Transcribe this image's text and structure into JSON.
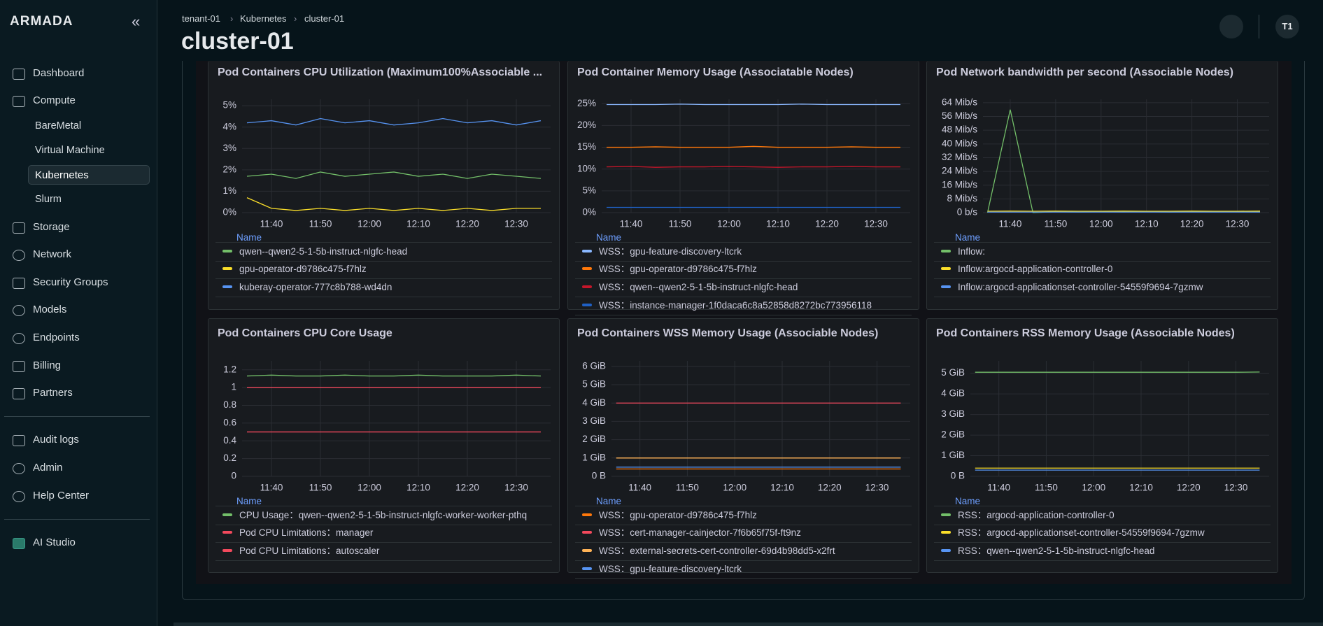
{
  "sidebar": {
    "brand": "ARMADA",
    "nav": [
      "Dashboard",
      "Compute",
      "BareMetal",
      "Virtual Machine",
      "Kubernetes",
      "Slurm",
      "Storage",
      "Network",
      "Security Groups",
      "Models",
      "Endpoints",
      "Billing",
      "Partners",
      "Audit logs",
      "Admin",
      "Help Center",
      "AI Studio"
    ]
  },
  "header": {
    "breadcrumb": [
      "tenant-01",
      "Kubernetes",
      "cluster-01"
    ],
    "title": "cluster-01",
    "avatar": "T1"
  },
  "panels": [
    {
      "title": "Pod Containers CPU Utilization (Maximum100%Associable ...",
      "legend_header": "Name",
      "chart": {
        "type": "line",
        "x": [
          695,
          700,
          705,
          710,
          715,
          720,
          725,
          730,
          735,
          740,
          745,
          750,
          755
        ],
        "xlim": [
          694,
          757
        ],
        "xticks": [
          {
            "value": 700,
            "label": "11:40"
          },
          {
            "value": 710,
            "label": "11:50"
          },
          {
            "value": 720,
            "label": "12:00"
          },
          {
            "value": 730,
            "label": "12:10"
          },
          {
            "value": 740,
            "label": "12:20"
          },
          {
            "value": 750,
            "label": "12:30"
          }
        ],
        "ylim": [
          0,
          5.3
        ],
        "yticks": [
          {
            "value": 0,
            "label": "0%"
          },
          {
            "value": 1,
            "label": "1%"
          },
          {
            "value": 2,
            "label": "2%"
          },
          {
            "value": 3,
            "label": "3%"
          },
          {
            "value": 4,
            "label": "4%"
          },
          {
            "value": 5,
            "label": "5%"
          }
        ],
        "series": [
          {
            "name": "qwen--qwen2-5-1-5b-instruct-nlgfc-head",
            "color": "#73bf69",
            "values": [
              1.7,
              1.8,
              1.6,
              1.9,
              1.7,
              1.8,
              1.9,
              1.7,
              1.8,
              1.6,
              1.8,
              1.7,
              1.6
            ]
          },
          {
            "name": "gpu-operator-d9786c475-f7hlz",
            "color": "#fade2a",
            "values": [
              0.7,
              0.2,
              0.1,
              0.2,
              0.1,
              0.2,
              0.1,
              0.2,
              0.1,
              0.2,
              0.1,
              0.2,
              0.2
            ]
          },
          {
            "name": "kuberay-operator-777c8b788-wd4dn",
            "color": "#5794f2",
            "values": [
              4.2,
              4.3,
              4.1,
              4.4,
              4.2,
              4.3,
              4.1,
              4.2,
              4.4,
              4.2,
              4.3,
              4.1,
              4.3
            ]
          }
        ]
      }
    },
    {
      "title": "Pod Container Memory Usage (Associatable Nodes)",
      "legend_header": "Name",
      "chart": {
        "type": "line",
        "x": [
          695,
          700,
          705,
          710,
          715,
          720,
          725,
          730,
          735,
          740,
          745,
          750,
          755
        ],
        "xlim": [
          694,
          757
        ],
        "xticks": [
          {
            "value": 700,
            "label": "11:40"
          },
          {
            "value": 710,
            "label": "11:50"
          },
          {
            "value": 720,
            "label": "12:00"
          },
          {
            "value": 730,
            "label": "12:10"
          },
          {
            "value": 740,
            "label": "12:20"
          },
          {
            "value": 750,
            "label": "12:30"
          }
        ],
        "ylim": [
          0,
          26
        ],
        "yticks": [
          {
            "value": 0,
            "label": "0%"
          },
          {
            "value": 5,
            "label": "5%"
          },
          {
            "value": 10,
            "label": "10%"
          },
          {
            "value": 15,
            "label": "15%"
          },
          {
            "value": 20,
            "label": "20%"
          },
          {
            "value": 25,
            "label": "25%"
          }
        ],
        "series": [
          {
            "name": "WSS：gpu-feature-discovery-ltcrk",
            "color": "#8ab8ff",
            "values": [
              24.8,
              24.8,
              24.8,
              24.9,
              24.8,
              24.8,
              24.8,
              24.8,
              24.9,
              24.8,
              24.8,
              24.8,
              24.8
            ]
          },
          {
            "name": "WSS：gpu-operator-d9786c475-f7hlz",
            "color": "#ff780a",
            "values": [
              15,
              15,
              15.1,
              15,
              15,
              15,
              15.2,
              15,
              15,
              15,
              15.1,
              15,
              15
            ]
          },
          {
            "name": "WSS：qwen--qwen2-5-1-5b-instruct-nlgfc-head",
            "color": "#c4162a",
            "values": [
              10.5,
              10.6,
              10.4,
              10.5,
              10.5,
              10.6,
              10.5,
              10.4,
              10.5,
              10.5,
              10.6,
              10.5,
              10.5
            ]
          },
          {
            "name": "WSS：instance-manager-1f0daca6c8a52858d8272bc773956118",
            "color": "#1f60c4",
            "values": [
              1.2,
              1.2,
              1.2,
              1.2,
              1.2,
              1.2,
              1.2,
              1.2,
              1.2,
              1.2,
              1.2,
              1.2,
              1.2
            ]
          }
        ]
      }
    },
    {
      "title": "Pod Network bandwidth per second (Associable Nodes)",
      "legend_header": "Name",
      "chart": {
        "type": "line",
        "x": [
          695,
          700,
          705,
          710,
          715,
          720,
          725,
          730,
          735,
          740,
          745,
          750,
          755
        ],
        "xlim": [
          694,
          757
        ],
        "xticks": [
          {
            "value": 700,
            "label": "11:40"
          },
          {
            "value": 710,
            "label": "11:50"
          },
          {
            "value": 720,
            "label": "12:00"
          },
          {
            "value": 730,
            "label": "12:10"
          },
          {
            "value": 740,
            "label": "12:20"
          },
          {
            "value": 750,
            "label": "12:30"
          }
        ],
        "ylim": [
          0,
          66
        ],
        "yticks": [
          {
            "value": 0,
            "label": "0 b/s"
          },
          {
            "value": 8,
            "label": "8 Mib/s"
          },
          {
            "value": 16,
            "label": "16 Mib/s"
          },
          {
            "value": 24,
            "label": "24 Mib/s"
          },
          {
            "value": 32,
            "label": "32 Mib/s"
          },
          {
            "value": 40,
            "label": "40 Mib/s"
          },
          {
            "value": 48,
            "label": "48 Mib/s"
          },
          {
            "value": 56,
            "label": "56 Mib/s"
          },
          {
            "value": 64,
            "label": "64 Mib/s"
          }
        ],
        "series": [
          {
            "name": "Inflow:",
            "color": "#73bf69",
            "values": [
              0,
              60,
              0,
              0.5,
              0.3,
              0.5,
              0.4,
              0.6,
              0.3,
              0.5,
              0.4,
              0.5,
              0.4
            ]
          },
          {
            "name": "Inflow:argocd-application-controller-0",
            "color": "#fade2a",
            "values": [
              0.8,
              0.9,
              0.8,
              0.9,
              0.8,
              0.8,
              0.9,
              0.8,
              0.8,
              0.9,
              0.8,
              0.8,
              0.9
            ]
          },
          {
            "name": "Inflow:argocd-applicationset-controller-54559f9694-7gzmw",
            "color": "#5794f2",
            "values": [
              0.3,
              0.3,
              0.3,
              0.3,
              0.3,
              0.3,
              0.3,
              0.3,
              0.3,
              0.3,
              0.3,
              0.3,
              0.3
            ]
          }
        ]
      }
    },
    {
      "title": "Pod Containers CPU Core Usage",
      "legend_header": "Name",
      "chart": {
        "type": "line",
        "x": [
          695,
          700,
          705,
          710,
          715,
          720,
          725,
          730,
          735,
          740,
          745,
          750,
          755
        ],
        "xlim": [
          694,
          757
        ],
        "xticks": [
          {
            "value": 700,
            "label": "11:40"
          },
          {
            "value": 710,
            "label": "11:50"
          },
          {
            "value": 720,
            "label": "12:00"
          },
          {
            "value": 730,
            "label": "12:10"
          },
          {
            "value": 740,
            "label": "12:20"
          },
          {
            "value": 750,
            "label": "12:30"
          }
        ],
        "ylim": [
          0,
          1.3
        ],
        "yticks": [
          0,
          0.2,
          0.4,
          0.6,
          0.8,
          1,
          1.2
        ],
        "series": [
          {
            "name": "CPU Usage：qwen--qwen2-5-1-5b-instruct-nlgfc-worker-worker-pthq",
            "color": "#73bf69",
            "values": [
              1.13,
              1.14,
              1.13,
              1.13,
              1.14,
              1.13,
              1.13,
              1.14,
              1.13,
              1.13,
              1.13,
              1.14,
              1.13
            ]
          },
          {
            "name": "Pod CPU Limitations：manager",
            "color": "#f2495c",
            "values": [
              1,
              1,
              1,
              1,
              1,
              1,
              1,
              1,
              1,
              1,
              1,
              1,
              1
            ]
          },
          {
            "name": "Pod CPU Limitations：autoscaler",
            "color": "#f2495c",
            "values": [
              0.5,
              0.5,
              0.5,
              0.5,
              0.5,
              0.5,
              0.5,
              0.5,
              0.5,
              0.5,
              0.5,
              0.5,
              0.5
            ]
          }
        ]
      }
    },
    {
      "title": "Pod Containers WSS Memory Usage (Associable Nodes)",
      "legend_header": "Name",
      "chart": {
        "type": "line",
        "x": [
          695,
          700,
          705,
          710,
          715,
          720,
          725,
          730,
          735,
          740,
          745,
          750,
          755
        ],
        "xlim": [
          694,
          757
        ],
        "xticks": [
          {
            "value": 700,
            "label": "11:40"
          },
          {
            "value": 710,
            "label": "11:50"
          },
          {
            "value": 720,
            "label": "12:00"
          },
          {
            "value": 730,
            "label": "12:10"
          },
          {
            "value": 740,
            "label": "12:20"
          },
          {
            "value": 750,
            "label": "12:30"
          }
        ],
        "ylim": [
          0,
          6.3
        ],
        "yticks": [
          {
            "value": 0,
            "label": "0 B"
          },
          {
            "value": 1,
            "label": "1 GiB"
          },
          {
            "value": 2,
            "label": "2 GiB"
          },
          {
            "value": 3,
            "label": "3 GiB"
          },
          {
            "value": 4,
            "label": "4 GiB"
          },
          {
            "value": 5,
            "label": "5 GiB"
          },
          {
            "value": 6,
            "label": "6 GiB"
          }
        ],
        "series": [
          {
            "name": "WSS：gpu-operator-d9786c475-f7hlz",
            "color": "#ff780a",
            "values": [
              0.4,
              0.4,
              0.4,
              0.4,
              0.4,
              0.4,
              0.4,
              0.4,
              0.4,
              0.4,
              0.4,
              0.4,
              0.4
            ]
          },
          {
            "name": "WSS：cert-manager-cainjector-7f6b65f75f-ft9nz",
            "color": "#f2495c",
            "values": [
              4,
              4,
              4,
              4,
              4,
              4,
              4,
              4,
              4,
              4,
              4,
              4,
              4
            ]
          },
          {
            "name": "WSS：external-secrets-cert-controller-69d4b98dd5-x2frt",
            "color": "#ffb357",
            "values": [
              1,
              1,
              1,
              1,
              1,
              1,
              1,
              1,
              1,
              1,
              1,
              1,
              1
            ]
          },
          {
            "name": "WSS：gpu-feature-discovery-ltcrk",
            "color": "#5794f2",
            "values": [
              0.5,
              0.5,
              0.5,
              0.5,
              0.5,
              0.5,
              0.5,
              0.5,
              0.5,
              0.5,
              0.5,
              0.5,
              0.5
            ]
          }
        ]
      }
    },
    {
      "title": "Pod Containers RSS Memory Usage (Associable Nodes)",
      "legend_header": "Name",
      "chart": {
        "type": "line",
        "x": [
          695,
          700,
          705,
          710,
          715,
          720,
          725,
          730,
          735,
          740,
          745,
          750,
          755
        ],
        "xlim": [
          694,
          757
        ],
        "xticks": [
          {
            "value": 700,
            "label": "11:40"
          },
          {
            "value": 710,
            "label": "11:50"
          },
          {
            "value": 720,
            "label": "12:00"
          },
          {
            "value": 730,
            "label": "12:10"
          },
          {
            "value": 740,
            "label": "12:20"
          },
          {
            "value": 750,
            "label": "12:30"
          }
        ],
        "ylim": [
          0,
          5.6
        ],
        "yticks": [
          {
            "value": 0,
            "label": "0 B"
          },
          {
            "value": 1,
            "label": "1 GiB"
          },
          {
            "value": 2,
            "label": "2 GiB"
          },
          {
            "value": 3,
            "label": "3 GiB"
          },
          {
            "value": 4,
            "label": "4 GiB"
          },
          {
            "value": 5,
            "label": "5 GiB"
          }
        ],
        "series": [
          {
            "name": "RSS：argocd-application-controller-0",
            "color": "#73bf69",
            "values": [
              5.05,
              5.05,
              5.05,
              5.05,
              5.05,
              5.05,
              5.05,
              5.05,
              5.05,
              5.05,
              5.05,
              5.05,
              5.06
            ]
          },
          {
            "name": "RSS：argocd-applicationset-controller-54559f9694-7gzmw",
            "color": "#fade2a",
            "values": [
              0.4,
              0.4,
              0.4,
              0.4,
              0.4,
              0.4,
              0.4,
              0.4,
              0.4,
              0.4,
              0.4,
              0.4,
              0.4
            ]
          },
          {
            "name": "RSS：qwen--qwen2-5-1-5b-instruct-nlgfc-head",
            "color": "#5794f2",
            "values": [
              0.3,
              0.3,
              0.3,
              0.3,
              0.3,
              0.3,
              0.3,
              0.3,
              0.3,
              0.3,
              0.3,
              0.3,
              0.3
            ]
          }
        ]
      }
    }
  ]
}
